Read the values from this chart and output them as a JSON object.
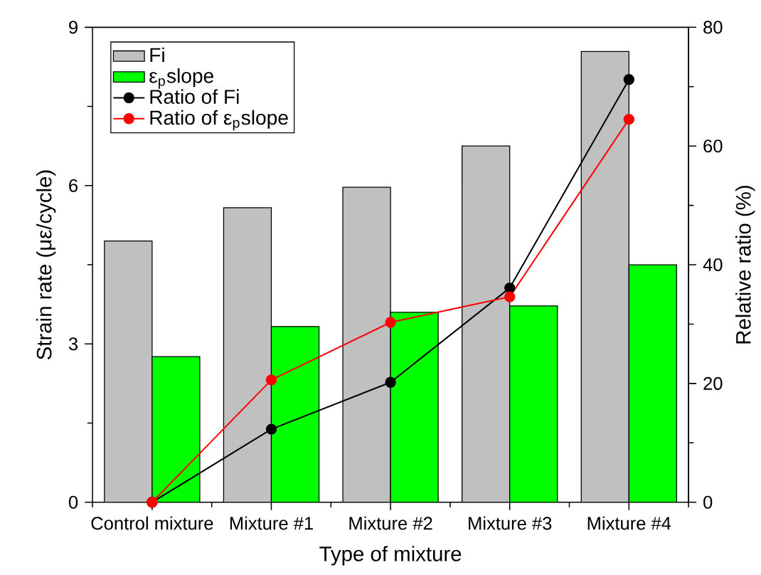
{
  "chart_data": {
    "type": "bar",
    "categories": [
      "Control mixture",
      "Mixture #1",
      "Mixture #2",
      "Mixture #3",
      "Mixture #4"
    ],
    "xlabel": "Type of mixture",
    "ylabel": "Strain rate (με/cycle)",
    "y2label": "Relative ratio (%)",
    "ylim": [
      0,
      9
    ],
    "yticks": [
      0,
      3,
      6,
      9
    ],
    "y2lim": [
      0,
      80
    ],
    "y2ticks": [
      0,
      20,
      40,
      60,
      80
    ],
    "legend": "top left",
    "series": [
      {
        "name": "Fi",
        "color": "#c0c0c0",
        "values": [
          4.95,
          5.58,
          5.97,
          6.75,
          8.54
        ]
      },
      {
        "name": "ε$_{p}$slope",
        "color": "#00ff00",
        "values": [
          2.76,
          3.33,
          3.6,
          3.72,
          4.5
        ]
      },
      {
        "name": "Ratio of Fi",
        "type": "line",
        "axis": "y2",
        "color": "#000000",
        "marker": "circle",
        "line_style": "solid",
        "values": [
          0,
          12.3,
          20.2,
          36.1,
          71.2
        ]
      },
      {
        "name": "Ratio of ε$_{p}$slope",
        "type": "line",
        "axis": "y2",
        "color": "#ff0000",
        "marker": "circle",
        "line_style": "solid",
        "values": [
          0,
          20.6,
          30.3,
          34.6,
          64.5
        ]
      }
    ]
  }
}
